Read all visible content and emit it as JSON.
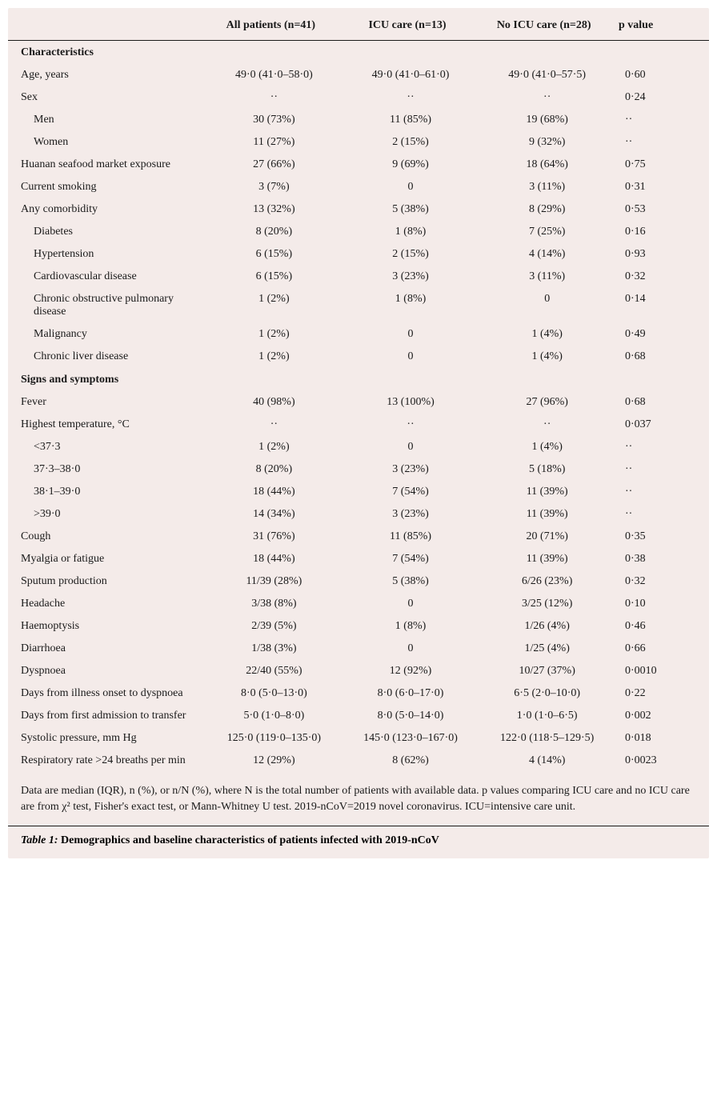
{
  "table": {
    "font_size_pt": 14,
    "colors": {
      "background": "#f4ebe9",
      "text": "#1a1a1a",
      "rule": "#1a1a1a"
    },
    "columns": [
      {
        "label": ""
      },
      {
        "label": "All patients (n=41)"
      },
      {
        "label": "ICU care (n=13)"
      },
      {
        "label": "No ICU care (n=28)"
      },
      {
        "label": "p value"
      }
    ],
    "sections": [
      {
        "title": "Characteristics",
        "rows": [
          {
            "label": "Age, years",
            "indent": 0,
            "all": "49·0 (41·0–58·0)",
            "icu": "49·0 (41·0–61·0)",
            "noicu": "49·0 (41·0–57·5)",
            "p": "0·60"
          },
          {
            "label": "Sex",
            "indent": 0,
            "all": "··",
            "icu": "··",
            "noicu": "··",
            "p": "0·24"
          },
          {
            "label": "Men",
            "indent": 1,
            "all": "30 (73%)",
            "icu": "11 (85%)",
            "noicu": "19 (68%)",
            "p": "··"
          },
          {
            "label": "Women",
            "indent": 1,
            "all": "11 (27%)",
            "icu": "2 (15%)",
            "noicu": "9 (32%)",
            "p": "··"
          },
          {
            "label": "Huanan seafood market exposure",
            "indent": 0,
            "all": "27 (66%)",
            "icu": "9 (69%)",
            "noicu": "18 (64%)",
            "p": "0·75"
          },
          {
            "label": "Current smoking",
            "indent": 0,
            "all": "3 (7%)",
            "icu": "0",
            "noicu": "3 (11%)",
            "p": "0·31"
          },
          {
            "label": "Any comorbidity",
            "indent": 0,
            "all": "13 (32%)",
            "icu": "5 (38%)",
            "noicu": "8 (29%)",
            "p": "0·53"
          },
          {
            "label": "Diabetes",
            "indent": 1,
            "all": "8 (20%)",
            "icu": "1 (8%)",
            "noicu": "7 (25%)",
            "p": "0·16"
          },
          {
            "label": "Hypertension",
            "indent": 1,
            "all": "6 (15%)",
            "icu": "2 (15%)",
            "noicu": "4 (14%)",
            "p": "0·93"
          },
          {
            "label": "Cardiovascular disease",
            "indent": 1,
            "all": "6 (15%)",
            "icu": "3 (23%)",
            "noicu": "3 (11%)",
            "p": "0·32"
          },
          {
            "label": "Chronic obstructive pulmonary disease",
            "indent": 1,
            "all": "1 (2%)",
            "icu": "1 (8%)",
            "noicu": "0",
            "p": "0·14"
          },
          {
            "label": "Malignancy",
            "indent": 1,
            "all": "1 (2%)",
            "icu": "0",
            "noicu": "1 (4%)",
            "p": "0·49"
          },
          {
            "label": "Chronic liver disease",
            "indent": 1,
            "all": "1 (2%)",
            "icu": "0",
            "noicu": "1 (4%)",
            "p": "0·68"
          }
        ]
      },
      {
        "title": "Signs and symptoms",
        "rows": [
          {
            "label": "Fever",
            "indent": 0,
            "all": "40 (98%)",
            "icu": "13 (100%)",
            "noicu": "27 (96%)",
            "p": "0·68"
          },
          {
            "label": "Highest temperature, °C",
            "indent": 0,
            "all": "··",
            "icu": "··",
            "noicu": "··",
            "p": "0·037"
          },
          {
            "label": "<37·3",
            "indent": 1,
            "all": "1 (2%)",
            "icu": "0",
            "noicu": "1 (4%)",
            "p": "··"
          },
          {
            "label": "37·3–38·0",
            "indent": 1,
            "all": "8 (20%)",
            "icu": "3 (23%)",
            "noicu": "5 (18%)",
            "p": "··"
          },
          {
            "label": "38·1–39·0",
            "indent": 1,
            "all": "18 (44%)",
            "icu": "7 (54%)",
            "noicu": "11 (39%)",
            "p": "··"
          },
          {
            "label": ">39·0",
            "indent": 1,
            "all": "14 (34%)",
            "icu": "3 (23%)",
            "noicu": "11 (39%)",
            "p": "··"
          },
          {
            "label": "Cough",
            "indent": 0,
            "all": "31 (76%)",
            "icu": "11 (85%)",
            "noicu": "20 (71%)",
            "p": "0·35"
          },
          {
            "label": "Myalgia or fatigue",
            "indent": 0,
            "all": "18 (44%)",
            "icu": "7 (54%)",
            "noicu": "11 (39%)",
            "p": "0·38"
          },
          {
            "label": "Sputum production",
            "indent": 0,
            "all": "11/39 (28%)",
            "icu": "5 (38%)",
            "noicu": "6/26 (23%)",
            "p": "0·32"
          },
          {
            "label": "Headache",
            "indent": 0,
            "all": "3/38 (8%)",
            "icu": "0",
            "noicu": "3/25 (12%)",
            "p": "0·10"
          },
          {
            "label": "Haemoptysis",
            "indent": 0,
            "all": "2/39 (5%)",
            "icu": "1 (8%)",
            "noicu": "1/26 (4%)",
            "p": "0·46"
          },
          {
            "label": "Diarrhoea",
            "indent": 0,
            "all": "1/38 (3%)",
            "icu": "0",
            "noicu": "1/25 (4%)",
            "p": "0·66"
          },
          {
            "label": "Dyspnoea",
            "indent": 0,
            "all": "22/40 (55%)",
            "icu": "12 (92%)",
            "noicu": "10/27 (37%)",
            "p": "0·0010"
          },
          {
            "label": "Days from illness onset to dyspnoea",
            "indent": 0,
            "all": "8·0 (5·0–13·0)",
            "icu": "8·0 (6·0–17·0)",
            "noicu": "6·5 (2·0–10·0)",
            "p": "0·22"
          },
          {
            "label": "Days from first admission to transfer",
            "indent": 0,
            "all": "5·0 (1·0–8·0)",
            "icu": "8·0 (5·0–14·0)",
            "noicu": "1·0 (1·0–6·5)",
            "p": "0·002"
          },
          {
            "label": "Systolic pressure, mm Hg",
            "indent": 0,
            "all": "125·0 (119·0–135·0)",
            "icu": "145·0 (123·0–167·0)",
            "noicu": "122·0 (118·5–129·5)",
            "p": "0·018"
          },
          {
            "label": "Respiratory rate >24 breaths per min",
            "indent": 0,
            "all": "12 (29%)",
            "icu": "8 (62%)",
            "noicu": "4 (14%)",
            "p": "0·0023"
          }
        ]
      }
    ],
    "footnote": "Data are median (IQR), n (%), or n/N (%), where N is the total number of patients with available data. p values comparing ICU care and no ICU care are from χ² test, Fisher's exact test, or Mann-Whitney U test. 2019-nCoV=2019 novel coronavirus. ICU=intensive care unit.",
    "caption_label": "Table 1:",
    "caption_text": " Demographics and baseline characteristics of patients infected with 2019-nCoV"
  }
}
